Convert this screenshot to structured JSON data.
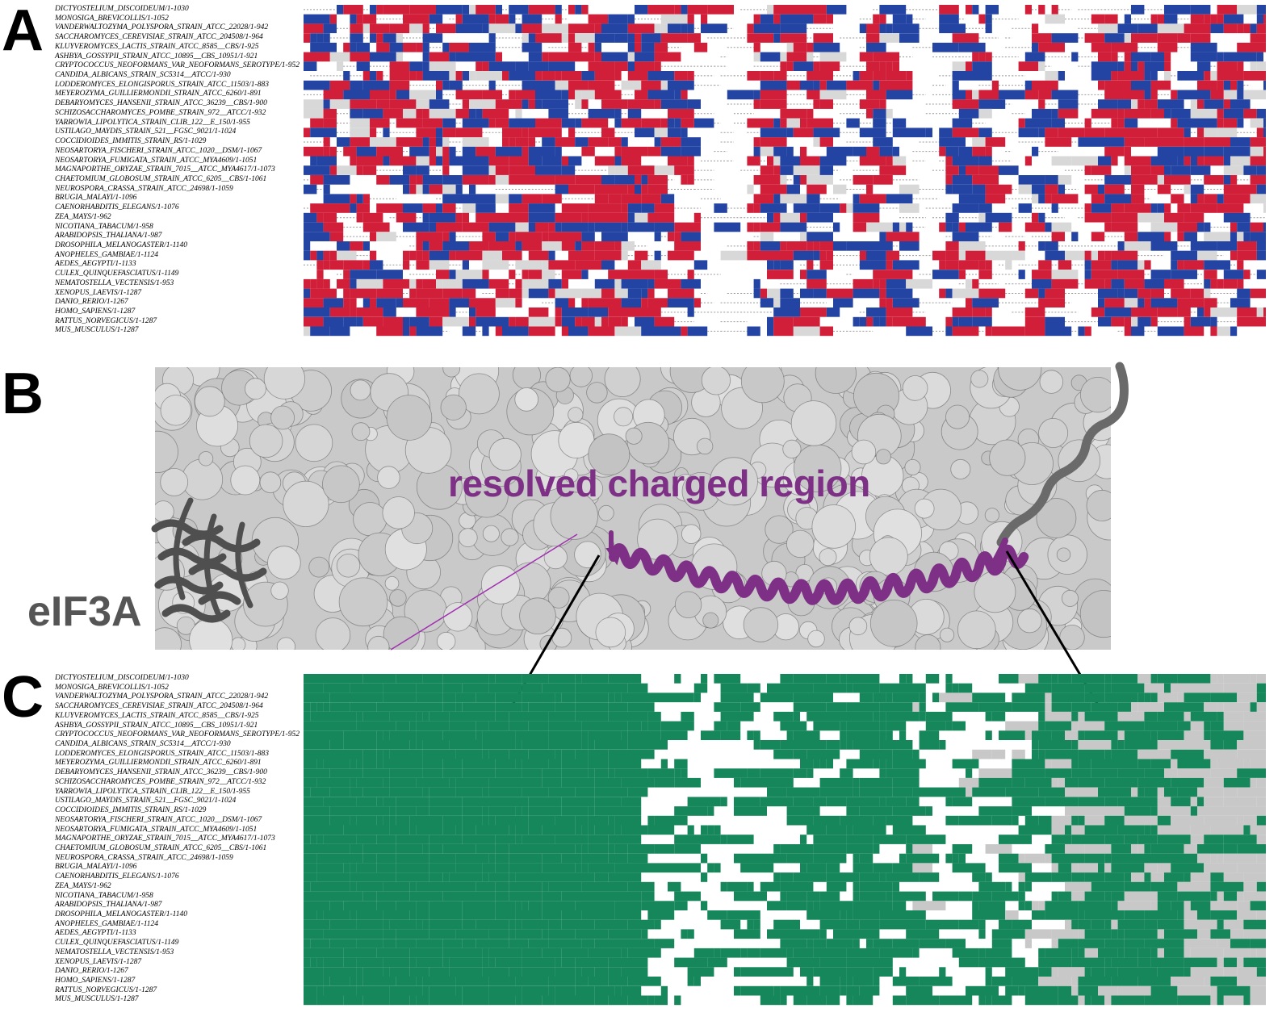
{
  "panels": {
    "a": "A",
    "b": "B",
    "c": "C"
  },
  "species": [
    "DICTYOSTELIUM_DISCOIDEUM/1-1030",
    "MONOSIGA_BREVICOLLIS/1-1052",
    "VANDERWALTOZYMA_POLYSPORA_STRAIN_ATCC_22028/1-942",
    "SACCHAROMYCES_CEREVISIAE_STRAIN_ATCC_204508/1-964",
    "KLUYVEROMYCES_LACTIS_STRAIN_ATCC_8585__CBS/1-925",
    "ASHBYA_GOSSYPII_STRAIN_ATCC_10895__CBS_10951/1-921",
    "CRYPTOCOCCUS_NEOFORMANS_VAR_NEOFORMANS_SEROTYPE/1-952",
    "CANDIDA_ALBICANS_STRAIN_SC5314__ATCC/1-930",
    "LODDEROMYCES_ELONGISPORUS_STRAIN_ATCC_11503/1-883",
    "MEYEROZYMA_GUILLIERMONDII_STRAIN_ATCC_6260/1-891",
    "DEBARYOMYCES_HANSENII_STRAIN_ATCC_36239__CBS/1-900",
    "SCHIZOSACCHAROMYCES_POMBE_STRAIN_972__ATCC/1-932",
    "YARROWIA_LIPOLYTICA_STRAIN_CLIB_122__E_150/1-955",
    "USTILAGO_MAYDIS_STRAIN_521__FGSC_9021/1-1024",
    "COCCIDIOIDES_IMMITIS_STRAIN_RS/1-1029",
    "NEOSARTORYA_FISCHERI_STRAIN_ATCC_1020__DSM/1-1067",
    "NEOSARTORYA_FUMIGATA_STRAIN_ATCC_MYA4609/1-1051",
    "MAGNAPORTHE_ORYZAE_STRAIN_7015__ATCC_MYA4617/1-1073",
    "CHAETOMIUM_GLOBOSUM_STRAIN_ATCC_6205__CBS/1-1061",
    "NEUROSPORA_CRASSA_STRAIN_ATCC_24698/1-1059",
    "BRUGIA_MALAYI/1-1096",
    "CAENORHABDITIS_ELEGANS/1-1076",
    "ZEA_MAYS/1-962",
    "NICOTIANA_TABACUM/1-958",
    "ARABIDOPSIS_THALIANA/1-987",
    "DROSOPHILA_MELANOGASTER/1-1140",
    "ANOPHELES_GAMBIAE/1-1124",
    "AEDES_AEGYPTI/1-1133",
    "CULEX_QUINQUEFASCIATUS/1-1149",
    "NEMATOSTELLA_VECTENSIS/1-953",
    "XENOPUS_LAEVIS/1-1287",
    "DANIO_RERIO/1-1267",
    "HOMO_SAPIENS/1-1287",
    "RATTUS_NORVEGICUS/1-1287",
    "MUS_MUSCULUS/1-1287"
  ],
  "structure": {
    "protein_label": "eIF3A",
    "region_label": "resolved charged region"
  },
  "colors": {
    "positive": "#d11f3a",
    "negative": "#2444a4",
    "helix": "#16875a",
    "coil": "#c8c8c8",
    "region": "#7e2f86",
    "surface": "#c9c9c9",
    "eif3a": "#555555"
  }
}
